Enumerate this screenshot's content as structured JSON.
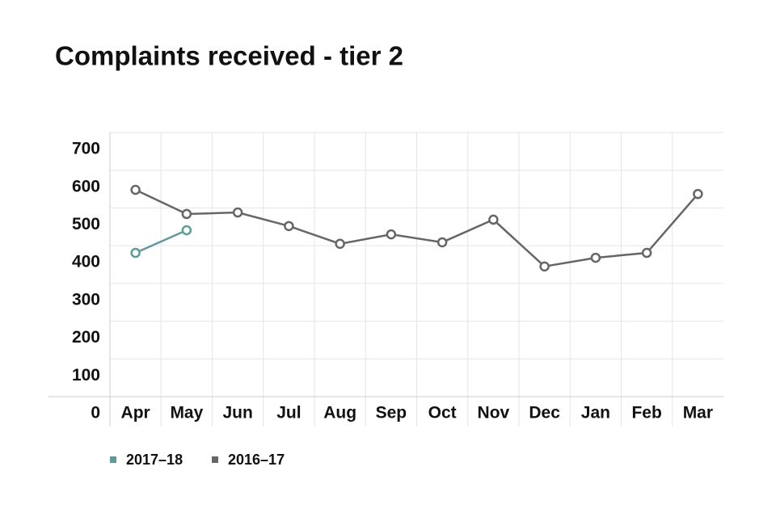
{
  "chart_data": {
    "type": "line",
    "title": "Complaints received - tier 2",
    "categories": [
      "Apr",
      "May",
      "Jun",
      "Jul",
      "Aug",
      "Sep",
      "Oct",
      "Nov",
      "Dec",
      "Jan",
      "Feb",
      "Mar"
    ],
    "series": [
      {
        "name": "2017–18",
        "color": "#5e9c9c",
        "values": [
          381,
          441,
          null,
          null,
          null,
          null,
          null,
          null,
          null,
          null,
          null,
          null
        ]
      },
      {
        "name": "2016–17",
        "color": "#666666",
        "values": [
          548,
          484,
          488,
          452,
          405,
          430,
          409,
          469,
          345,
          368,
          381,
          537
        ]
      }
    ],
    "ylim": [
      0,
      700
    ],
    "yticks": [
      0,
      100,
      200,
      300,
      400,
      500,
      600,
      700
    ],
    "grid": true
  }
}
